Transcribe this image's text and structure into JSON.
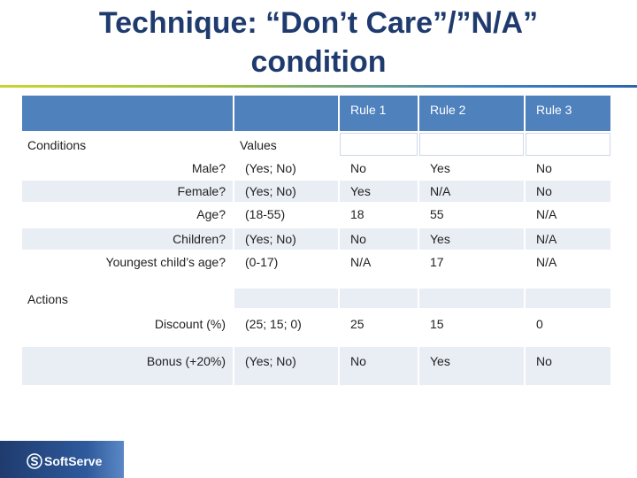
{
  "slide": {
    "title_line1": "Technique: “Don’t Care”/”N/A”",
    "title_line2": "condition"
  },
  "table": {
    "rules": [
      "Rule 1",
      "Rule 2",
      "Rule 3"
    ],
    "conditions_label": "Conditions",
    "values_label": "Values",
    "actions_label": "Actions",
    "conditions": [
      {
        "label": "Male?",
        "values": "(Yes; No)",
        "r1": "No",
        "r2": "Yes",
        "r3": "No"
      },
      {
        "label": "Female?",
        "values": "(Yes; No)",
        "r1": "Yes",
        "r2": "N/A",
        "r3": "No"
      },
      {
        "label": "Age?",
        "values": "(18-55)",
        "r1": "18",
        "r2": "55",
        "r3": "N/A"
      },
      {
        "label": "Children?",
        "values": "(Yes; No)",
        "r1": "No",
        "r2": "Yes",
        "r3": "N/A"
      },
      {
        "label": "Youngest child’s age?",
        "values": "(0-17)",
        "r1": "N/A",
        "r2": "17",
        "r3": "N/A"
      }
    ],
    "actions": [
      {
        "label": "Discount (%)",
        "values": "(25; 15; 0)",
        "r1": "25",
        "r2": "15",
        "r3": "0"
      },
      {
        "label": "Bonus (+20%)",
        "values": "(Yes; No)",
        "r1": "No",
        "r2": "Yes",
        "r3": "No"
      }
    ]
  },
  "footer": {
    "logo_text": "SoftServe"
  },
  "colors": {
    "title": "#1f3b6e",
    "header_fill": "#4f81bd",
    "row_light": "#e9edf4",
    "row_mid": "#d0d8e8"
  }
}
